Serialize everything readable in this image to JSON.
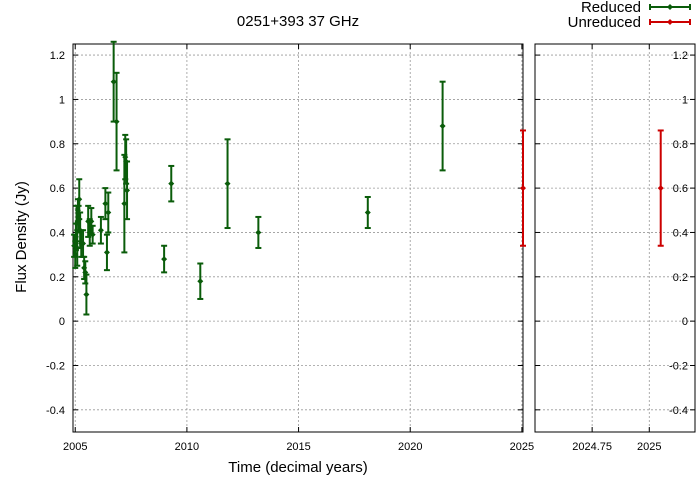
{
  "chart_data": {
    "type": "scatter",
    "title": "0251+393 37 GHz",
    "xlabel": "Time (decimal years)",
    "ylabel": "Flux Density (Jy)",
    "grid": true,
    "legend_position": "top-right",
    "colors": {
      "reduced": "#0a5c0a",
      "unreduced": "#cc0000"
    },
    "ylim": [
      -0.5,
      1.25
    ],
    "y_ticks": [
      -0.4,
      -0.2,
      0,
      0.2,
      0.4,
      0.6,
      0.8,
      1,
      1.2
    ],
    "y_tick_labels": [
      "-0.4",
      "-0.2",
      "0",
      "0.2",
      "0.4",
      "0.6",
      "0.8",
      "1",
      "1.2"
    ],
    "panels": [
      {
        "xlim": [
          2004.9,
          2025.05
        ],
        "x_ticks": [
          2005,
          2010,
          2015,
          2020,
          2025
        ],
        "x_tick_labels": [
          "2005",
          "2010",
          "2015",
          "2020",
          "2025"
        ]
      },
      {
        "xlim": [
          2024.5,
          2025.2
        ],
        "x_ticks": [
          2024.75,
          2025
        ],
        "x_tick_labels": [
          "2024.75",
          "2025"
        ]
      }
    ],
    "series": [
      {
        "name": "Reduced",
        "points": [
          {
            "x": 2004.95,
            "y": 0.34,
            "err": 0.05
          },
          {
            "x": 2005.0,
            "y": 0.3,
            "err": 0.06
          },
          {
            "x": 2005.03,
            "y": 0.38,
            "err": 0.06
          },
          {
            "x": 2005.06,
            "y": 0.44,
            "err": 0.08
          },
          {
            "x": 2005.09,
            "y": 0.33,
            "err": 0.08
          },
          {
            "x": 2005.12,
            "y": 0.5,
            "err": 0.05
          },
          {
            "x": 2005.15,
            "y": 0.46,
            "err": 0.06
          },
          {
            "x": 2005.18,
            "y": 0.55,
            "err": 0.09
          },
          {
            "x": 2005.22,
            "y": 0.41,
            "err": 0.08
          },
          {
            "x": 2005.27,
            "y": 0.35,
            "err": 0.06
          },
          {
            "x": 2005.35,
            "y": 0.35,
            "err": 0.06
          },
          {
            "x": 2005.4,
            "y": 0.24,
            "err": 0.05
          },
          {
            "x": 2005.45,
            "y": 0.22,
            "err": 0.05
          },
          {
            "x": 2005.5,
            "y": 0.12,
            "err": 0.09
          },
          {
            "x": 2005.58,
            "y": 0.45,
            "err": 0.07
          },
          {
            "x": 2005.65,
            "y": 0.4,
            "err": 0.06
          },
          {
            "x": 2005.72,
            "y": 0.45,
            "err": 0.06
          },
          {
            "x": 2005.78,
            "y": 0.39,
            "err": 0.04
          },
          {
            "x": 2006.15,
            "y": 0.41,
            "err": 0.06
          },
          {
            "x": 2006.35,
            "y": 0.53,
            "err": 0.07
          },
          {
            "x": 2006.42,
            "y": 0.31,
            "err": 0.08
          },
          {
            "x": 2006.48,
            "y": 0.49,
            "err": 0.09
          },
          {
            "x": 2006.72,
            "y": 1.08,
            "err": 0.18
          },
          {
            "x": 2006.85,
            "y": 0.9,
            "err": 0.22
          },
          {
            "x": 2007.2,
            "y": 0.53,
            "err": 0.22
          },
          {
            "x": 2007.24,
            "y": 0.74,
            "err": 0.1
          },
          {
            "x": 2007.28,
            "y": 0.72,
            "err": 0.1
          },
          {
            "x": 2007.32,
            "y": 0.59,
            "err": 0.13
          },
          {
            "x": 2008.98,
            "y": 0.28,
            "err": 0.06
          },
          {
            "x": 2009.3,
            "y": 0.62,
            "err": 0.08
          },
          {
            "x": 2010.6,
            "y": 0.18,
            "err": 0.08
          },
          {
            "x": 2011.82,
            "y": 0.62,
            "err": 0.2
          },
          {
            "x": 2013.2,
            "y": 0.4,
            "err": 0.07
          },
          {
            "x": 2018.1,
            "y": 0.49,
            "err": 0.07
          },
          {
            "x": 2021.45,
            "y": 0.88,
            "err": 0.2
          }
        ]
      },
      {
        "name": "Unreduced",
        "points": [
          {
            "x": 2025.05,
            "y": 0.6,
            "err": 0.26
          }
        ]
      }
    ]
  }
}
